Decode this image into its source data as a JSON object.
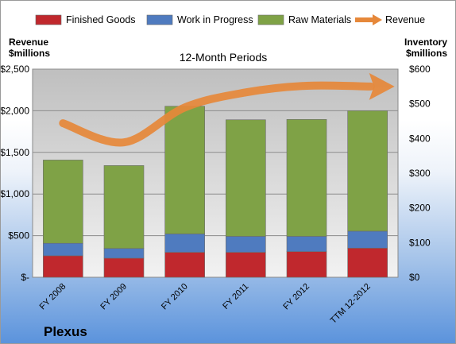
{
  "chart_data": {
    "type": "bar",
    "stacked": true,
    "title": "12-Month Periods",
    "company": "Plexus",
    "left_axis_label": [
      "Revenue",
      "$millions"
    ],
    "right_axis_label": [
      "Inventory",
      "$millions"
    ],
    "categories": [
      "FY 2008",
      "FY 2009",
      "FY 2010",
      "FY 2011",
      "FY 2012",
      "TTM 12-2012"
    ],
    "left_ticks": [
      "$-",
      "$500",
      "$1,000",
      "$1,500",
      "$2,000",
      "$2,500"
    ],
    "right_ticks": [
      "$0",
      "$100",
      "$200",
      "$300",
      "$400",
      "$500",
      "$600"
    ],
    "ylim_left": [
      0,
      2500
    ],
    "ylim_right": [
      0,
      600
    ],
    "grid": "horizontal",
    "legend_position": "top",
    "series": [
      {
        "name": "Finished Goods",
        "axis": "right",
        "color": "#c0282d",
        "values": [
          62,
          55,
          72,
          72,
          74,
          84
        ]
      },
      {
        "name": "Work in Progress",
        "axis": "right",
        "color": "#4f7bbf",
        "values": [
          36,
          28,
          53,
          46,
          44,
          49
        ]
      },
      {
        "name": "Raw Materials",
        "axis": "right",
        "color": "#7fa246",
        "values": [
          240,
          239,
          368,
          336,
          337,
          347
        ]
      },
      {
        "name": "Revenue",
        "axis": "left",
        "type": "line",
        "color": "#e6883a",
        "values": [
          1850,
          1620,
          2040,
          2220,
          2300,
          2310
        ]
      }
    ]
  }
}
